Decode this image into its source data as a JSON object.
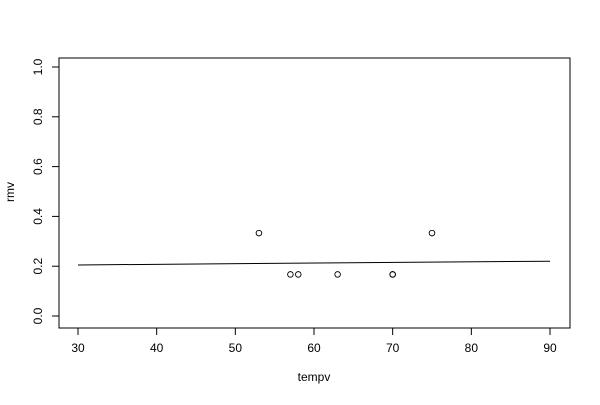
{
  "chart_data": {
    "type": "scatter",
    "title": "",
    "xlabel": "tempv",
    "ylabel": "rmv",
    "xlim": [
      27.6,
      92.4
    ],
    "ylim": [
      -0.04,
      1.04
    ],
    "xticks": [
      "30",
      "40",
      "50",
      "60",
      "70",
      "80",
      "90"
    ],
    "yticks": [
      "0.0",
      "0.2",
      "0.4",
      "0.6",
      "0.8",
      "1.0"
    ],
    "grid": false,
    "points": [
      {
        "x": 53,
        "y": 0.333
      },
      {
        "x": 57,
        "y": 0.167
      },
      {
        "x": 58,
        "y": 0.167
      },
      {
        "x": 63,
        "y": 0.167
      },
      {
        "x": 70,
        "y": 0.167
      },
      {
        "x": 70,
        "y": 0.167
      },
      {
        "x": 75,
        "y": 0.333
      }
    ],
    "fit_line": {
      "x": [
        30,
        90
      ],
      "y": [
        0.205,
        0.22
      ]
    },
    "marker_color": "#000000",
    "line_color": "#000000"
  }
}
